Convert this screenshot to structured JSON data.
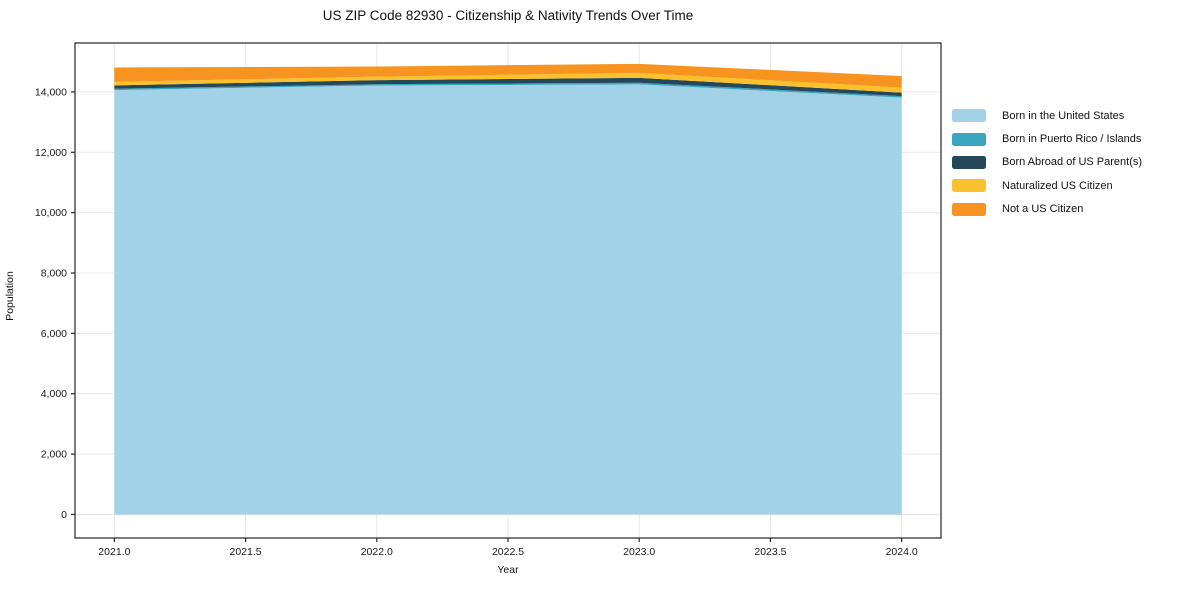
{
  "title": "US ZIP Code 82930 - Citizenship & Nativity Trends Over Time",
  "chart_data": {
    "type": "area",
    "stacked": true,
    "title": "US ZIP Code 82930 - Citizenship & Nativity Trends Over Time",
    "xlabel": "Year",
    "ylabel": "Population",
    "x": [
      2021,
      2022,
      2023,
      2024
    ],
    "series": [
      {
        "name": "Born in the United States",
        "color": "#a2d2e8",
        "values": [
          14060,
          14210,
          14250,
          13810
        ]
      },
      {
        "name": "Born in Puerto Rico / Islands",
        "color": "#3aa5bf",
        "values": [
          45,
          45,
          55,
          50
        ]
      },
      {
        "name": "Born Abroad of US Parent(s)",
        "color": "#24475a",
        "values": [
          110,
          135,
          160,
          115
        ]
      },
      {
        "name": "Naturalized US Citizen",
        "color": "#fbc12c",
        "values": [
          115,
          115,
          165,
          165
        ]
      },
      {
        "name": "Not a US Citizen",
        "color": "#f6941f",
        "values": [
          480,
          335,
          300,
          385
        ]
      }
    ],
    "totals": [
      14810,
      14840,
      14930,
      14525
    ],
    "xlim": [
      2020.85,
      2024.15
    ],
    "ylim": [
      -780,
      15620
    ],
    "x_ticks": [
      2021.0,
      2021.5,
      2022.0,
      2022.5,
      2023.0,
      2023.5,
      2024.0
    ],
    "x_tick_labels": [
      "2021.0",
      "2021.5",
      "2022.0",
      "2022.5",
      "2023.0",
      "2023.5",
      "2024.0"
    ],
    "y_ticks": [
      0,
      2000,
      4000,
      6000,
      8000,
      10000,
      12000,
      14000
    ],
    "y_tick_labels": [
      "0",
      "2,000",
      "4,000",
      "6,000",
      "8,000",
      "10,000",
      "12,000",
      "14,000"
    ],
    "grid": true,
    "legend_position": "right"
  },
  "style_colors": {
    "grid": "#e7e7e7",
    "frame": "#262626",
    "text": "#1a1a1a"
  }
}
